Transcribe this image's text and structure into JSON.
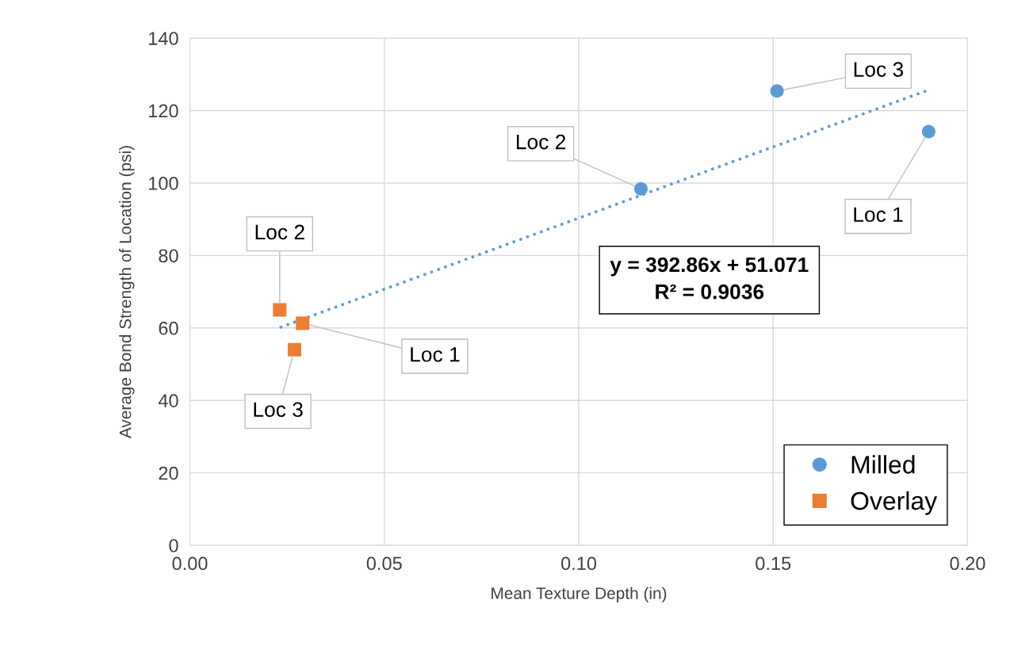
{
  "chart_data": {
    "type": "scatter",
    "xlabel": "Mean Texture Depth (in)",
    "ylabel": "Average Bond Strength of Location (psi)",
    "xlim": [
      0,
      0.2
    ],
    "xticks": [
      {
        "value": 0,
        "label": "0.00"
      },
      {
        "value": 0.05,
        "label": "0.05"
      },
      {
        "value": 0.1,
        "label": "0.10"
      },
      {
        "value": 0.15,
        "label": "0.15"
      },
      {
        "value": 0.2,
        "label": "0.20"
      }
    ],
    "ylim": [
      0,
      140
    ],
    "yticks": [
      0,
      20,
      40,
      60,
      80,
      100,
      120,
      140
    ],
    "grid": true,
    "legend": "bottom right",
    "series": [
      {
        "name": "Milled",
        "marker": "circle",
        "color": "#5b9bd5",
        "x": [
          0.19,
          0.116,
          0.151
        ],
        "values": [
          114.2,
          98.4,
          125.4
        ]
      },
      {
        "name": "Overlay",
        "marker": "square",
        "color": "#ed7d31",
        "x": [
          0.029,
          0.0231,
          0.0269
        ],
        "values": [
          61.3,
          65,
          54
        ]
      },
      {
        "type": "line",
        "line_style": "dotted",
        "color": "#5b9bd5",
        "x": [
          0.0231,
          0.19
        ],
        "values": [
          60.1,
          125.7
        ]
      }
    ],
    "annotations": [
      {
        "text": "Loc 1",
        "x": 0.19,
        "y": 114.2
      },
      {
        "text": "Loc 2",
        "x": 0.116,
        "y": 98.4
      },
      {
        "text": "Loc 3",
        "x": 0.151,
        "y": 125.4
      },
      {
        "text": "Loc 1",
        "x": 0.029,
        "y": 61.3
      },
      {
        "text": "Loc 2",
        "x": 0.0231,
        "y": 65
      },
      {
        "text": "Loc 3",
        "x": 0.0269,
        "y": 54
      },
      "y = 392.86x + 51.071\nR² = 0.9036"
    ]
  }
}
